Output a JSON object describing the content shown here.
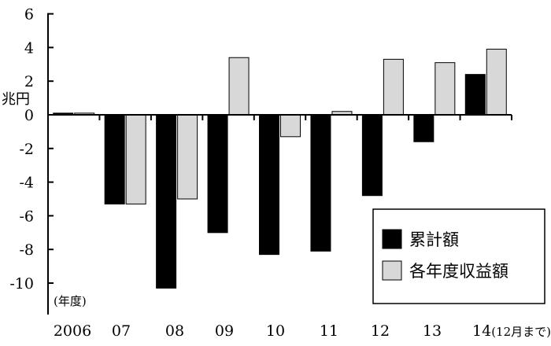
{
  "chart_data": {
    "type": "bar",
    "categories": [
      "2006",
      "07",
      "08",
      "09",
      "10",
      "11",
      "12",
      "13",
      "14"
    ],
    "x_tick_labels": [
      "2006",
      "07",
      "08",
      "09",
      "10",
      "11",
      "12",
      "13",
      "14(12月まで)"
    ],
    "series": [
      {
        "name": "累計額",
        "color": "#000000",
        "values": [
          0.1,
          -5.3,
          -10.3,
          -7.0,
          -8.3,
          -8.1,
          -4.8,
          -1.6,
          2.4
        ]
      },
      {
        "name": "各年度収益額",
        "color": "#d8d8d8",
        "values": [
          0.1,
          -5.3,
          -5.0,
          3.4,
          -1.3,
          0.2,
          3.3,
          3.1,
          3.9
        ]
      }
    ],
    "ylim": [
      -12,
      6
    ],
    "y_ticks": [
      6,
      4,
      2,
      0,
      -2,
      -4,
      -6,
      -8,
      -10
    ],
    "ylabel": "兆円",
    "xlabel": "(年度)",
    "legend_position": "bottom-right",
    "grid": false
  }
}
